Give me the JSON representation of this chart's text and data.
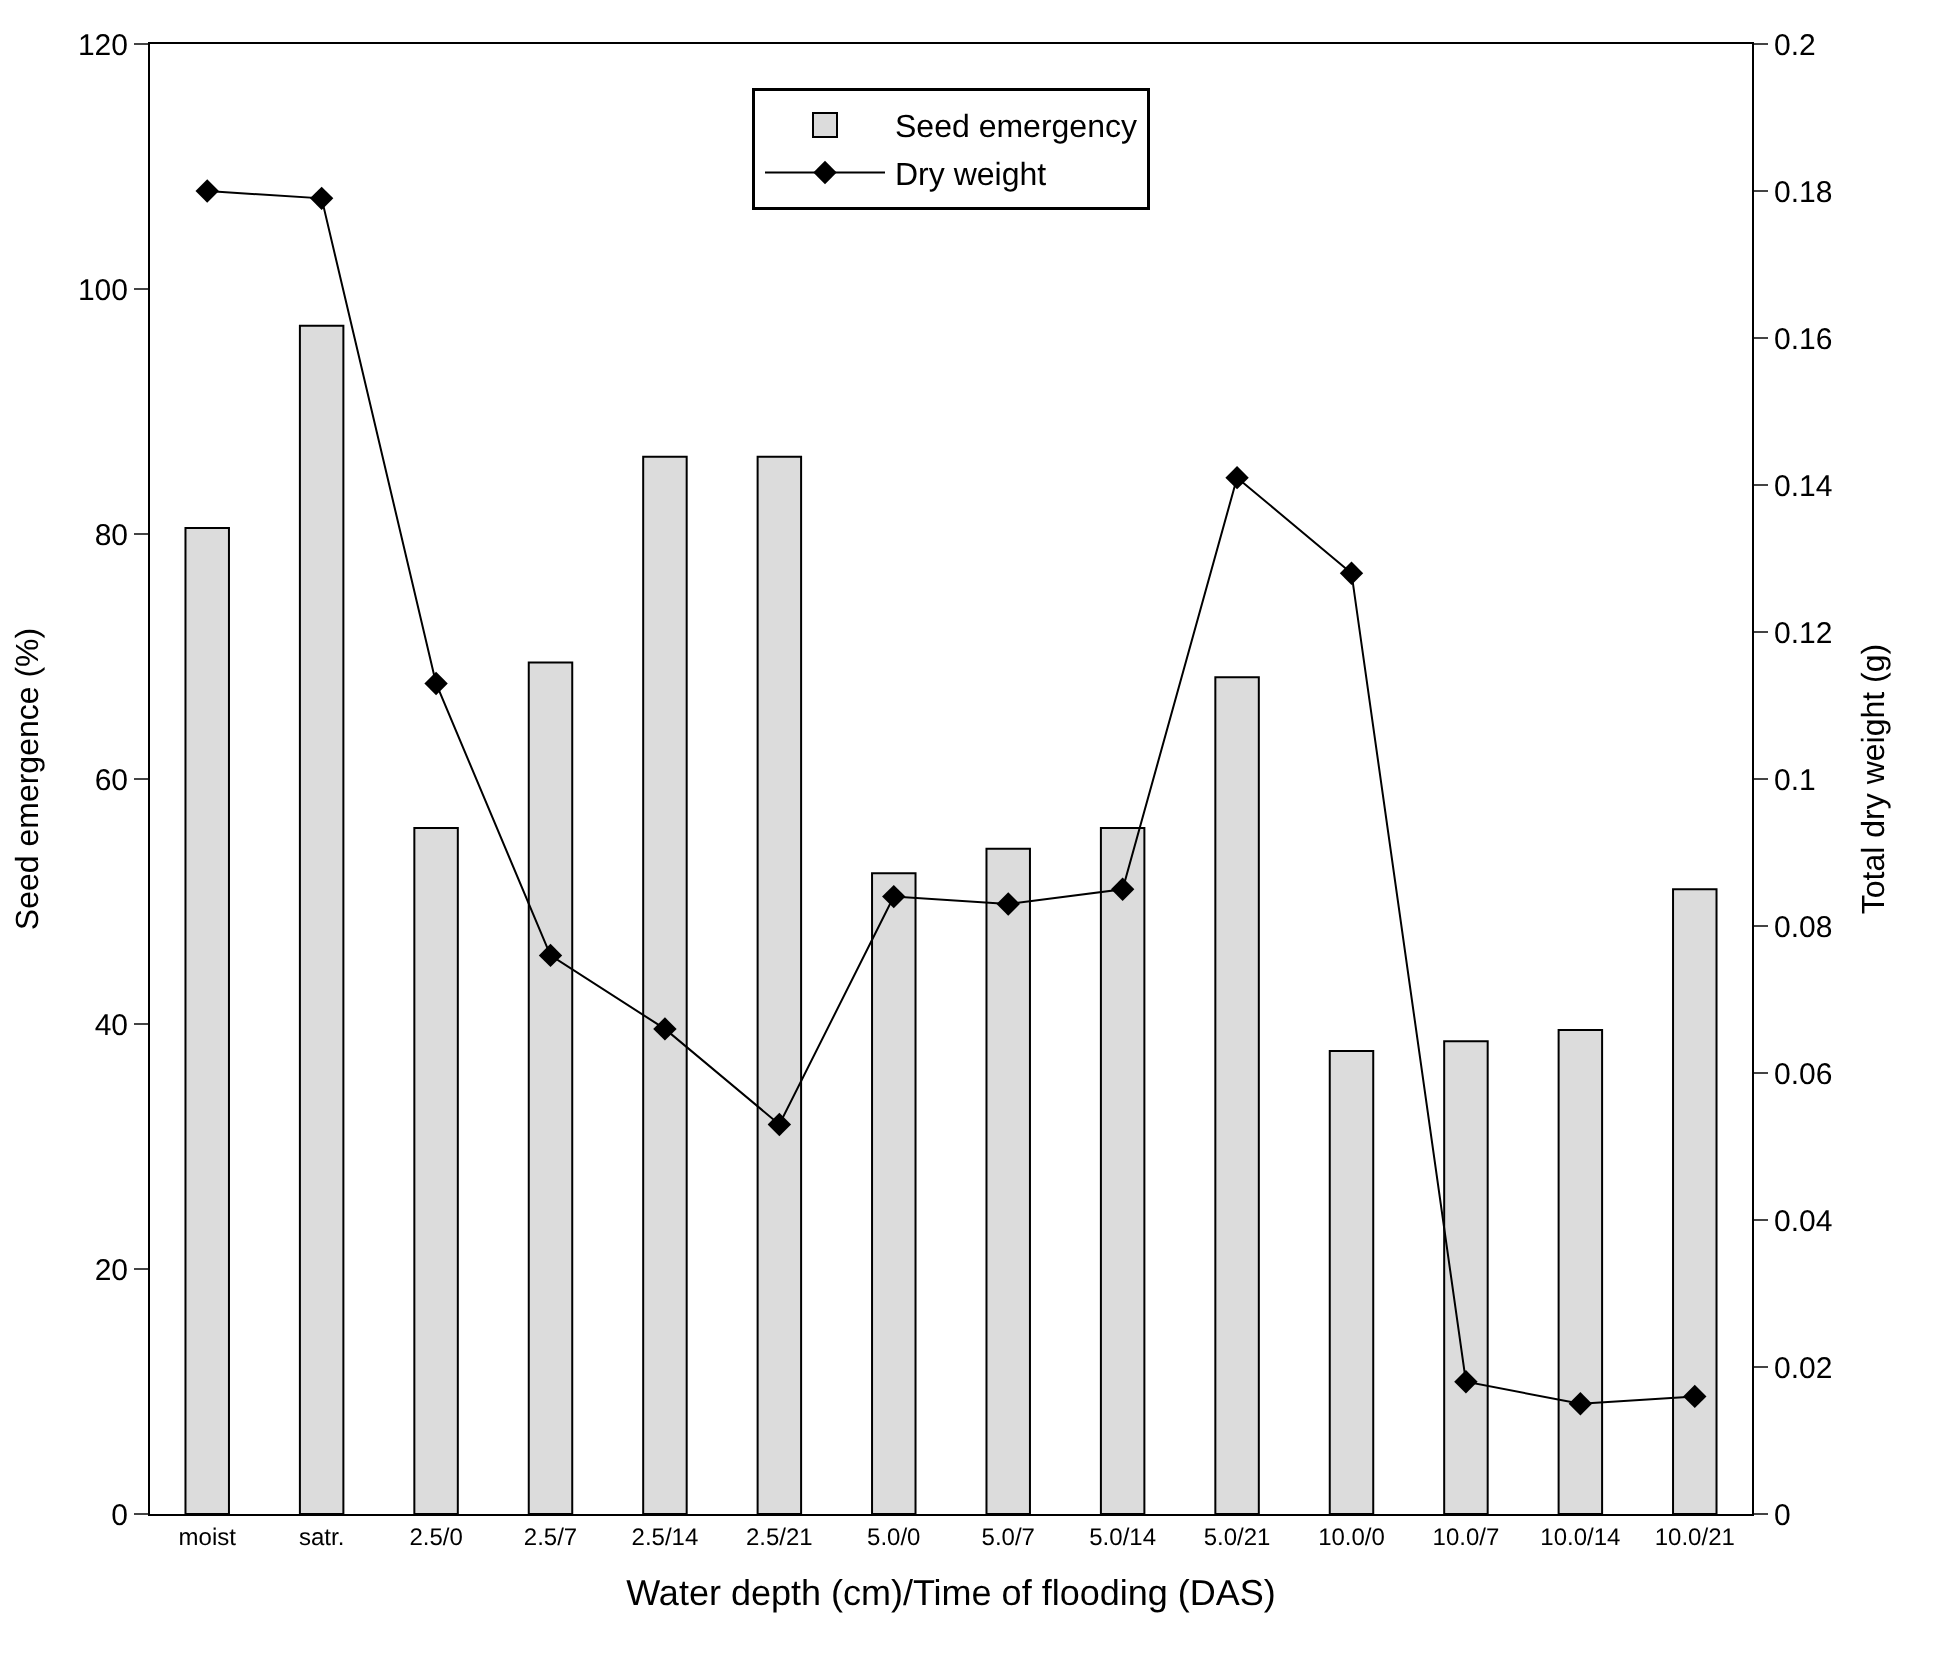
{
  "chart_data": {
    "type": "bar",
    "xlabel": "Water depth (cm)/Time of flooding (DAS)",
    "ylabel": "Seed emergence (%)",
    "y2label": "Total dry weight (g)",
    "categories": [
      "moist",
      "satr.",
      "2.5/0",
      "2.5/7",
      "2.5/14",
      "2.5/21",
      "5.0/0",
      "5.0/7",
      "5.0/14",
      "5.0/21",
      "10.0/0",
      "10.0/7",
      "10.0/14",
      "10.0/21"
    ],
    "series": [
      {
        "name": "Seed emergency",
        "color": "#dcdcdc",
        "values": [
          80.5,
          97,
          56,
          69.5,
          86.3,
          86.3,
          52.3,
          54.3,
          56,
          68.3,
          37.8,
          38.6,
          39.5,
          51
        ]
      },
      {
        "name": "Dry weight",
        "type": "line",
        "axis": "y2",
        "color": "#000000",
        "marker": "diamond",
        "values": [
          0.18,
          0.179,
          0.113,
          0.076,
          0.066,
          0.053,
          0.084,
          0.083,
          0.085,
          0.141,
          0.128,
          0.018,
          0.015,
          0.016
        ]
      }
    ],
    "ylim": [
      0,
      120
    ],
    "yticks": [
      0,
      20,
      40,
      60,
      80,
      100,
      120
    ],
    "y2lim": [
      0,
      0.2
    ],
    "y2ticks": [
      0,
      0.02,
      0.04,
      0.06,
      0.08,
      0.1,
      0.12,
      0.14,
      0.16,
      0.18,
      0.2
    ],
    "legend": "top"
  }
}
